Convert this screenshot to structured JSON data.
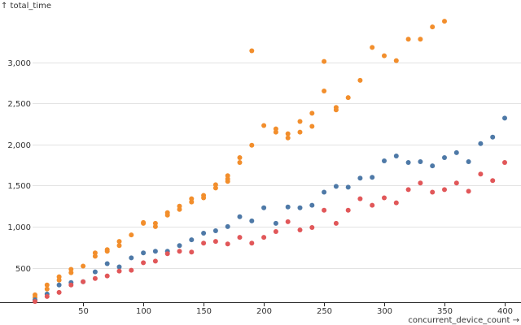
{
  "chart_data": {
    "type": "scatter",
    "xlabel": "concurrent_device_count →",
    "ylabel": "↑ total_time",
    "xlim": [
      8,
      400
    ],
    "ylim": [
      80,
      3560
    ],
    "x_ticks": [
      50,
      100,
      150,
      200,
      250,
      300,
      350,
      400
    ],
    "x_tick_labels": [
      "50",
      "100",
      "150",
      "200",
      "250",
      "300",
      "350",
      "400"
    ],
    "y_ticks": [
      500,
      1000,
      1500,
      2000,
      2500,
      3000
    ],
    "y_tick_labels": [
      "500",
      "1,000",
      "1,500",
      "2,000",
      "2,500",
      "3,000"
    ],
    "grid": true,
    "legend": "none",
    "series": [
      {
        "name": "orange",
        "color": "#f28e2c",
        "points": [
          [
            10,
            170
          ],
          [
            10,
            140
          ],
          [
            20,
            290
          ],
          [
            20,
            240
          ],
          [
            30,
            390
          ],
          [
            30,
            350
          ],
          [
            40,
            480
          ],
          [
            40,
            440
          ],
          [
            50,
            520
          ],
          [
            60,
            680
          ],
          [
            60,
            640
          ],
          [
            70,
            720
          ],
          [
            70,
            700
          ],
          [
            80,
            820
          ],
          [
            80,
            770
          ],
          [
            90,
            900
          ],
          [
            100,
            1050
          ],
          [
            100,
            1040
          ],
          [
            110,
            1040
          ],
          [
            110,
            1000
          ],
          [
            120,
            1170
          ],
          [
            120,
            1140
          ],
          [
            130,
            1250
          ],
          [
            130,
            1210
          ],
          [
            140,
            1340
          ],
          [
            140,
            1300
          ],
          [
            150,
            1380
          ],
          [
            150,
            1350
          ],
          [
            160,
            1510
          ],
          [
            160,
            1470
          ],
          [
            170,
            1620
          ],
          [
            170,
            1580
          ],
          [
            170,
            1550
          ],
          [
            180,
            1840
          ],
          [
            180,
            1780
          ],
          [
            190,
            3140
          ],
          [
            190,
            1990
          ],
          [
            200,
            2230
          ],
          [
            210,
            2190
          ],
          [
            210,
            2150
          ],
          [
            220,
            2130
          ],
          [
            220,
            2080
          ],
          [
            230,
            2280
          ],
          [
            230,
            2150
          ],
          [
            240,
            2380
          ],
          [
            240,
            2220
          ],
          [
            250,
            3010
          ],
          [
            250,
            2650
          ],
          [
            260,
            2450
          ],
          [
            260,
            2420
          ],
          [
            270,
            2570
          ],
          [
            280,
            2780
          ],
          [
            290,
            3180
          ],
          [
            300,
            3080
          ],
          [
            310,
            3020
          ],
          [
            320,
            3280
          ],
          [
            330,
            3280
          ],
          [
            340,
            3430
          ],
          [
            350,
            3500
          ]
        ]
      },
      {
        "name": "blue",
        "color": "#4e79a7",
        "points": [
          [
            10,
            110
          ],
          [
            20,
            180
          ],
          [
            30,
            290
          ],
          [
            40,
            320
          ],
          [
            50,
            330
          ],
          [
            60,
            450
          ],
          [
            70,
            550
          ],
          [
            80,
            510
          ],
          [
            90,
            620
          ],
          [
            100,
            680
          ],
          [
            110,
            700
          ],
          [
            120,
            700
          ],
          [
            130,
            770
          ],
          [
            140,
            840
          ],
          [
            150,
            920
          ],
          [
            160,
            950
          ],
          [
            170,
            1000
          ],
          [
            180,
            1120
          ],
          [
            190,
            1070
          ],
          [
            200,
            1230
          ],
          [
            210,
            1040
          ],
          [
            220,
            1240
          ],
          [
            230,
            1230
          ],
          [
            240,
            1260
          ],
          [
            250,
            1420
          ],
          [
            260,
            1490
          ],
          [
            270,
            1480
          ],
          [
            280,
            1590
          ],
          [
            290,
            1600
          ],
          [
            300,
            1800
          ],
          [
            310,
            1860
          ],
          [
            320,
            1780
          ],
          [
            330,
            1790
          ],
          [
            340,
            1740
          ],
          [
            350,
            1840
          ],
          [
            360,
            1900
          ],
          [
            370,
            1790
          ],
          [
            380,
            2010
          ],
          [
            390,
            2090
          ],
          [
            400,
            2320
          ]
        ]
      },
      {
        "name": "red",
        "color": "#e15759",
        "points": [
          [
            10,
            90
          ],
          [
            20,
            150
          ],
          [
            30,
            200
          ],
          [
            40,
            290
          ],
          [
            50,
            330
          ],
          [
            60,
            370
          ],
          [
            70,
            400
          ],
          [
            80,
            460
          ],
          [
            90,
            470
          ],
          [
            100,
            560
          ],
          [
            110,
            580
          ],
          [
            120,
            670
          ],
          [
            130,
            700
          ],
          [
            140,
            690
          ],
          [
            150,
            800
          ],
          [
            160,
            820
          ],
          [
            170,
            790
          ],
          [
            180,
            870
          ],
          [
            190,
            800
          ],
          [
            200,
            870
          ],
          [
            210,
            940
          ],
          [
            220,
            1060
          ],
          [
            230,
            960
          ],
          [
            240,
            990
          ],
          [
            250,
            1200
          ],
          [
            260,
            1040
          ],
          [
            270,
            1200
          ],
          [
            280,
            1340
          ],
          [
            290,
            1260
          ],
          [
            300,
            1350
          ],
          [
            310,
            1290
          ],
          [
            320,
            1450
          ],
          [
            330,
            1530
          ],
          [
            340,
            1420
          ],
          [
            350,
            1450
          ],
          [
            360,
            1530
          ],
          [
            370,
            1430
          ],
          [
            380,
            1640
          ],
          [
            390,
            1560
          ],
          [
            400,
            1780
          ]
        ]
      }
    ]
  }
}
